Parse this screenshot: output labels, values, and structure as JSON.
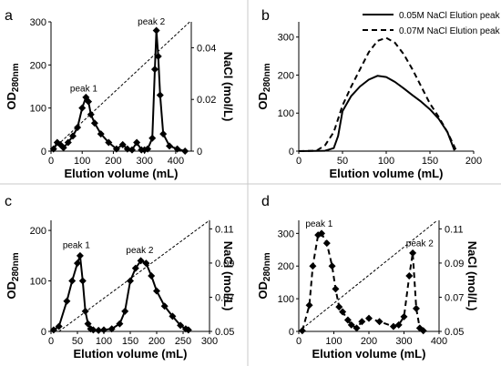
{
  "chart_data": [
    {
      "panel": "a",
      "type": "line",
      "xlabel": "Elution volume (mL)",
      "ylabel": "OD280nm",
      "ylabel_main": "OD",
      "ylabel_sub": "280nm",
      "y2label": "NaCl (mol/L)",
      "xlim": [
        0,
        450
      ],
      "ylim": [
        0,
        300
      ],
      "y2lim": [
        0,
        0.05
      ],
      "xticks": [
        0,
        100,
        200,
        300,
        400
      ],
      "yticks": [
        0,
        100,
        200,
        300
      ],
      "y2ticks": [
        0,
        0.02,
        0.04
      ],
      "y2ticklabels": [
        "0",
        "0.02",
        "0.04"
      ],
      "series": [
        {
          "style": "solid",
          "markers": "diamond",
          "x": [
            8,
            20,
            30,
            40,
            55,
            70,
            85,
            100,
            112,
            120,
            128,
            140,
            160,
            185,
            210,
            230,
            245,
            260,
            275,
            290,
            300,
            310,
            325,
            333,
            338,
            344,
            350,
            360,
            380,
            405,
            430
          ],
          "y": [
            5,
            20,
            15,
            8,
            20,
            35,
            55,
            100,
            125,
            115,
            85,
            65,
            40,
            20,
            5,
            15,
            5,
            3,
            20,
            3,
            3,
            5,
            30,
            190,
            280,
            220,
            130,
            40,
            12,
            5,
            0
          ]
        },
        {
          "style": "dashed",
          "axis": "right",
          "x": [
            0,
            445
          ],
          "y": [
            0,
            0.05
          ]
        }
      ],
      "annotations": [
        {
          "text": "peak 1",
          "x": 105,
          "y": 130
        },
        {
          "text": "peak 2",
          "x": 322,
          "y": 285
        }
      ]
    },
    {
      "panel": "b",
      "type": "line",
      "xlabel": "Elution volume (mL)",
      "ylabel": "OD280nm",
      "ylabel_main": "OD",
      "ylabel_sub": "280nm",
      "xlim": [
        0,
        200
      ],
      "ylim": [
        0,
        340
      ],
      "xticks": [
        0,
        50,
        100,
        150,
        200
      ],
      "yticks": [
        0,
        100,
        200,
        300
      ],
      "legend": "top-right",
      "series": [
        {
          "name": "0.05M NaCl Elution peak",
          "style": "solid",
          "x": [
            0,
            30,
            40,
            45,
            50,
            60,
            70,
            80,
            90,
            100,
            110,
            120,
            130,
            140,
            150,
            160,
            170,
            178
          ],
          "y": [
            0,
            1,
            8,
            40,
            105,
            145,
            170,
            188,
            198,
            195,
            182,
            165,
            147,
            130,
            110,
            85,
            50,
            2
          ]
        },
        {
          "name": "0.07M NaCl Elution peak",
          "style": "dashed",
          "x": [
            0,
            20,
            30,
            40,
            50,
            60,
            70,
            80,
            90,
            100,
            110,
            120,
            130,
            140,
            150,
            160,
            170,
            180
          ],
          "y": [
            0,
            1,
            15,
            50,
            120,
            170,
            215,
            260,
            290,
            298,
            285,
            255,
            215,
            170,
            125,
            90,
            50,
            2
          ]
        }
      ]
    },
    {
      "panel": "c",
      "type": "line",
      "xlabel": "Elution volume (mL)",
      "ylabel": "OD280nm",
      "ylabel_main": "OD",
      "ylabel_sub": "280nm",
      "y2label": "NaCl (mol/L)",
      "xlim": [
        0,
        300
      ],
      "ylim": [
        0,
        220
      ],
      "y2lim": [
        0.05,
        0.115
      ],
      "xticks": [
        0,
        50,
        100,
        150,
        200,
        250,
        300
      ],
      "yticks": [
        0,
        100,
        200
      ],
      "y2ticks": [
        0.05,
        0.07,
        0.09,
        0.11
      ],
      "y2ticklabels": [
        "0.05",
        "0.07",
        "0.09",
        "0.11"
      ],
      "series": [
        {
          "style": "solid",
          "markers": "diamond",
          "x": [
            5,
            15,
            30,
            40,
            50,
            55,
            60,
            65,
            70,
            75,
            80,
            90,
            100,
            115,
            130,
            140,
            150,
            160,
            170,
            180,
            190,
            200,
            215,
            230,
            245,
            255,
            260
          ],
          "y": [
            3,
            10,
            60,
            100,
            135,
            150,
            100,
            40,
            15,
            5,
            3,
            2,
            3,
            5,
            15,
            40,
            100,
            125,
            140,
            135,
            110,
            80,
            50,
            30,
            12,
            5,
            3
          ]
        },
        {
          "style": "dashed",
          "axis": "right",
          "x": [
            15,
            300
          ],
          "y": [
            0.05,
            0.115
          ]
        }
      ],
      "annotations": [
        {
          "text": "peak 1",
          "x": 48,
          "y": 158
        },
        {
          "text": "peak 2",
          "x": 168,
          "y": 148
        }
      ]
    },
    {
      "panel": "d",
      "type": "line",
      "xlabel": "Elution volume (mL)",
      "ylabel": "OD280nm",
      "ylabel_main": "OD",
      "ylabel_sub": "280nm",
      "y2label": "NaCl (mol/L)",
      "xlim": [
        0,
        400
      ],
      "ylim": [
        0,
        340
      ],
      "y2lim": [
        0.05,
        0.115
      ],
      "xticks": [
        0,
        100,
        200,
        300,
        400
      ],
      "yticks": [
        0,
        100,
        200,
        300
      ],
      "y2ticks": [
        0.05,
        0.07,
        0.09,
        0.11
      ],
      "y2ticklabels": [
        "0.05",
        "0.07",
        "0.09",
        "0.11"
      ],
      "series": [
        {
          "style": "dashed",
          "markers": "diamond",
          "x": [
            10,
            30,
            40,
            55,
            65,
            80,
            95,
            105,
            115,
            125,
            140,
            150,
            165,
            180,
            200,
            230,
            270,
            285,
            300,
            315,
            325,
            335,
            345,
            355
          ],
          "y": [
            2,
            80,
            200,
            295,
            300,
            270,
            200,
            130,
            75,
            60,
            35,
            20,
            10,
            30,
            40,
            30,
            15,
            20,
            45,
            170,
            240,
            70,
            10,
            2
          ]
        },
        {
          "style": "dashed",
          "axis": "right",
          "x": [
            0,
            395
          ],
          "y": [
            0.05,
            0.115
          ]
        }
      ],
      "annotations": [
        {
          "text": "peak 1",
          "x": 58,
          "y": 310
        },
        {
          "text": "peak 2",
          "x": 345,
          "y": 250
        }
      ]
    }
  ]
}
